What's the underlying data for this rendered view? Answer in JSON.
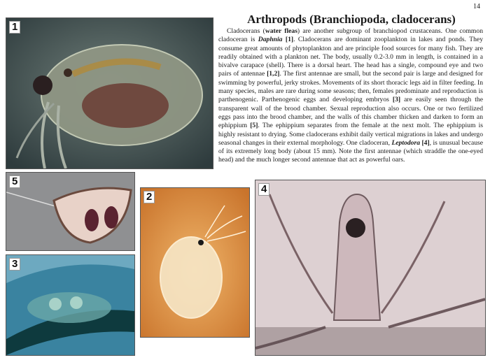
{
  "page_number": "14",
  "title": "Arthropods (Branchiopoda, cladocerans)",
  "body": {
    "s1": "Cladocerans (",
    "water_fleas": "water fleas",
    "s2": ") are another subgroup of branchiopod crustaceans. One common cladoceran is ",
    "daphnia": "Daphnia",
    "s3": " ",
    "ref1": "[1]",
    "s4": ". Cladocerans are dominant zooplankton in lakes and ponds. They consume great amounts of phytoplankton and are principle food sources for many fish. They are readily obtained with a plankton net. The body, usually 0.2-3.0 mm in length, is contained in a bivalve carapace (shell). There is a dorsal heart. The head has a single, compound eye and two pairs of antennae ",
    "ref12": "[1,2]",
    "s5": ". The first antennae are small, but the second pair is large and designed for swimming by powerful, jerky strokes. Movements of its short thoracic legs aid in filter feeding. In many species, males are rare during some seasons; then, females predominate and reproduction is parthenogenic. Parthenogenic eggs and developing embryos ",
    "ref3": "[3]",
    "s6": " are easily seen through the transparent wall of the brood chamber. Sexual reproduction also occurs. One or two fertilized eggs pass into the brood chamber, and the walls of this chamber thicken and darken to form an ephippium ",
    "ref5": "[5]",
    "s7": ". The ephippium separates from the female at the next molt. The ephippium is highly resistant to drying. Some cladocerans exhibit daily vertical migrations in lakes and undergo seasonal changes in their external morphology. One cladoceran, ",
    "leptodora": "Leptodora",
    "s8": " ",
    "ref4": "[4]",
    "s9": ", is unusual because of its extremely long body (about 15 mm). Note the first antennae (which straddle the one-eyed head) and the much longer second antennae that act as powerful oars."
  },
  "figures": [
    {
      "label": "1"
    },
    {
      "label": "5"
    },
    {
      "label": "2"
    },
    {
      "label": "3"
    },
    {
      "label": "4"
    }
  ]
}
